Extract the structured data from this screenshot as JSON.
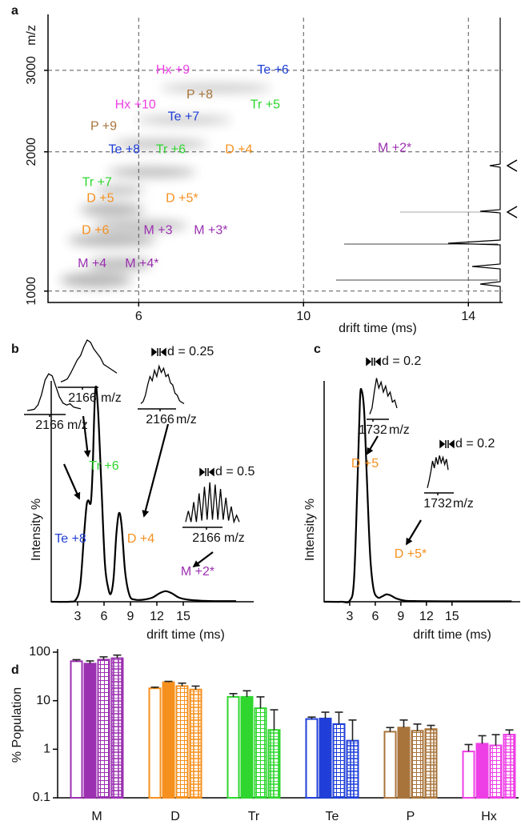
{
  "chart_data": [
    {
      "type": "annotated-map",
      "panel": "a",
      "xlabel": "drift time (ms)",
      "ylabel": "m/z",
      "xlim": [
        3.8,
        14.83
      ],
      "ylim": [
        945,
        3900
      ],
      "yscale": "log",
      "xticks": [
        6,
        10,
        14
      ],
      "yticks": [
        1000,
        2000,
        3000
      ],
      "grid": true,
      "annotations": [
        {
          "text": "Hx +9",
          "x": 6.83,
          "y": 3000,
          "color": "#ee3fe6"
        },
        {
          "text": "Te +6",
          "x": 9.26,
          "y": 3000,
          "color": "#1f3fd8"
        },
        {
          "text": "P +8",
          "x": 7.48,
          "y": 2655,
          "color": "#a8743c"
        },
        {
          "text": "Tr +5",
          "x": 9.07,
          "y": 2522,
          "color": "#2ed62e"
        },
        {
          "text": "Hx +10",
          "x": 5.92,
          "y": 2522,
          "color": "#ee3fe6"
        },
        {
          "text": "Te +7",
          "x": 7.09,
          "y": 2376,
          "color": "#1f3fd8"
        },
        {
          "text": "P +9",
          "x": 5.15,
          "y": 2265,
          "color": "#a8743c"
        },
        {
          "text": "Te +8",
          "x": 5.65,
          "y": 2019,
          "color": "#1f3fd8"
        },
        {
          "text": "Tr +6",
          "x": 6.78,
          "y": 2019,
          "color": "#2ed62e"
        },
        {
          "text": "D +4",
          "x": 8.43,
          "y": 2019,
          "color": "#f5901e"
        },
        {
          "text": "M +2*",
          "x": 12.21,
          "y": 2035,
          "color": "#9b30b0"
        },
        {
          "text": "Tr +7",
          "x": 4.99,
          "y": 1716,
          "color": "#2ed62e"
        },
        {
          "text": "D +5",
          "x": 5.07,
          "y": 1585,
          "color": "#f5901e"
        },
        {
          "text": "D +5*",
          "x": 7.05,
          "y": 1585,
          "color": "#f5901e"
        },
        {
          "text": "D +6",
          "x": 4.95,
          "y": 1352,
          "color": "#f5901e"
        },
        {
          "text": "M +3",
          "x": 6.47,
          "y": 1352,
          "color": "#9b30b0"
        },
        {
          "text": "M +3*",
          "x": 7.75,
          "y": 1352,
          "color": "#9b30b0"
        },
        {
          "text": "M +4",
          "x": 4.87,
          "y": 1145,
          "color": "#9b30b0"
        },
        {
          "text": "M +4*",
          "x": 6.08,
          "y": 1145,
          "color": "#9b30b0"
        }
      ]
    },
    {
      "type": "line",
      "panel": "b",
      "xlabel": "drift time (ms)",
      "ylabel": "Intensity %",
      "xlim": [
        0,
        23
      ],
      "ylim": [
        0,
        100
      ],
      "xticks": [
        3,
        6,
        9,
        12,
        15
      ],
      "color": "#000000",
      "x": [
        0,
        2,
        2.8,
        3.3,
        3.7,
        4.0,
        4.2,
        4.5,
        4.7,
        5.0,
        5.3,
        5.7,
        6.1,
        6.5,
        6.8,
        7.1,
        7.4,
        7.7,
        8.0,
        8.4,
        8.9,
        9.5,
        10.5,
        11.5,
        12.3,
        13,
        13.7,
        14.5,
        15.5,
        17,
        19,
        21
      ],
      "values": [
        0,
        0,
        1,
        8,
        30,
        45,
        48,
        47,
        62,
        100,
        92,
        55,
        18,
        6,
        4,
        12,
        32,
        42,
        36,
        14,
        3,
        1,
        1,
        2,
        4,
        5,
        4,
        2,
        1,
        0.5,
        0.3,
        0.3
      ],
      "annotations": [
        {
          "text": "Te +8",
          "color": "#1f3fd8"
        },
        {
          "text": "Tr +6",
          "color": "#2ed62e"
        },
        {
          "text": "D +4",
          "color": "#f5901e"
        },
        {
          "text": "M +2*",
          "color": "#9b30b0"
        }
      ],
      "insets": [
        {
          "values": [
            2,
            3,
            5,
            15,
            40,
            75,
            90,
            85,
            60,
            35,
            20,
            15,
            18,
            10,
            8,
            6
          ],
          "xticks": [
            2166
          ],
          "xlabel": "m/z"
        },
        {
          "values": [
            5,
            8,
            12,
            25,
            40,
            55,
            65,
            85,
            100,
            95,
            80,
            70,
            60,
            45,
            40,
            35,
            30,
            25
          ],
          "xticks": [
            2166
          ],
          "xlabel": "m/z"
        },
        {
          "values": [
            5,
            10,
            25,
            50,
            70,
            60,
            85,
            70,
            95,
            80,
            90,
            70,
            75,
            55,
            50,
            30,
            25,
            12,
            8,
            5
          ],
          "xticks": [
            2166
          ],
          "xlabel": "m/z",
          "annotation": "d = 0.25"
        },
        {
          "values": [
            5,
            30,
            5,
            50,
            5,
            70,
            8,
            85,
            10,
            95,
            10,
            90,
            10,
            80,
            10,
            60,
            8,
            40,
            5,
            20,
            5
          ],
          "xticks": [
            2166
          ],
          "xlabel": "m/z",
          "annotation": "d = 0.5"
        }
      ]
    },
    {
      "type": "line",
      "panel": "c",
      "xlabel": "drift time (ms)",
      "ylabel": "Intensity %",
      "xlim": [
        0,
        23
      ],
      "ylim": [
        0,
        100
      ],
      "xticks": [
        3,
        6,
        9,
        12,
        15
      ],
      "color": "#000000",
      "x": [
        0,
        2,
        3,
        3.5,
        3.9,
        4.2,
        4.4,
        4.7,
        5.0,
        5.4,
        5.8,
        6.3,
        6.8,
        7.3,
        7.8,
        8.5,
        9.5,
        11,
        14,
        18,
        22
      ],
      "values": [
        0,
        0,
        0.5,
        10,
        55,
        95,
        100,
        90,
        60,
        22,
        6,
        2,
        2.5,
        3.5,
        3,
        1.5,
        0.5,
        0.3,
        0.2,
        0.2,
        0.2
      ],
      "annotations": [
        {
          "text": "D +5",
          "color": "#f5901e"
        },
        {
          "text": "D +5*",
          "color": "#f5901e"
        }
      ],
      "insets": [
        {
          "values": [
            5,
            20,
            60,
            95,
            70,
            85,
            60,
            75,
            50,
            60,
            35,
            40,
            20
          ],
          "xticks": [
            1732
          ],
          "xlabel": "m/z",
          "annotation": "d = 0.2"
        },
        {
          "values": [
            5,
            25,
            50,
            80,
            60,
            90,
            70,
            95,
            75,
            90,
            70,
            85,
            55
          ],
          "xticks": [
            1732
          ],
          "xlabel": "m/z",
          "annotation": "d = 0.2"
        }
      ]
    },
    {
      "type": "bar",
      "panel": "d",
      "ylabel": "% Population",
      "yscale": "log",
      "ylim": [
        0.1,
        100
      ],
      "yticks": [
        0.1,
        1,
        10,
        100
      ],
      "categories": [
        "M",
        "D",
        "Tr",
        "Te",
        "P",
        "Hx"
      ],
      "colors": [
        "#9b30b0",
        "#f5901e",
        "#2ed62e",
        "#1f3fd8",
        "#a8743c",
        "#ee3fe6"
      ],
      "series": [
        {
          "style": "open",
          "values": [
            65,
            18,
            12,
            4.2,
            2.3,
            0.9
          ],
          "errors": [
            5,
            1,
            2,
            0.4,
            0.5,
            0.35
          ]
        },
        {
          "style": "solid",
          "values": [
            58,
            24,
            12,
            4.3,
            2.8,
            1.3
          ],
          "errors": [
            8,
            1,
            4,
            1.5,
            1.2,
            0.6
          ]
        },
        {
          "style": "grid",
          "values": [
            70,
            20,
            7,
            3.3,
            2.4,
            1.2
          ],
          "errors": [
            10,
            3,
            5,
            2.5,
            0.9,
            0.8
          ]
        },
        {
          "style": "brick",
          "values": [
            75,
            17,
            2.5,
            1.5,
            2.6,
            2.0
          ],
          "errors": [
            12,
            3,
            4,
            2.5,
            0.5,
            0.5
          ]
        }
      ]
    }
  ]
}
